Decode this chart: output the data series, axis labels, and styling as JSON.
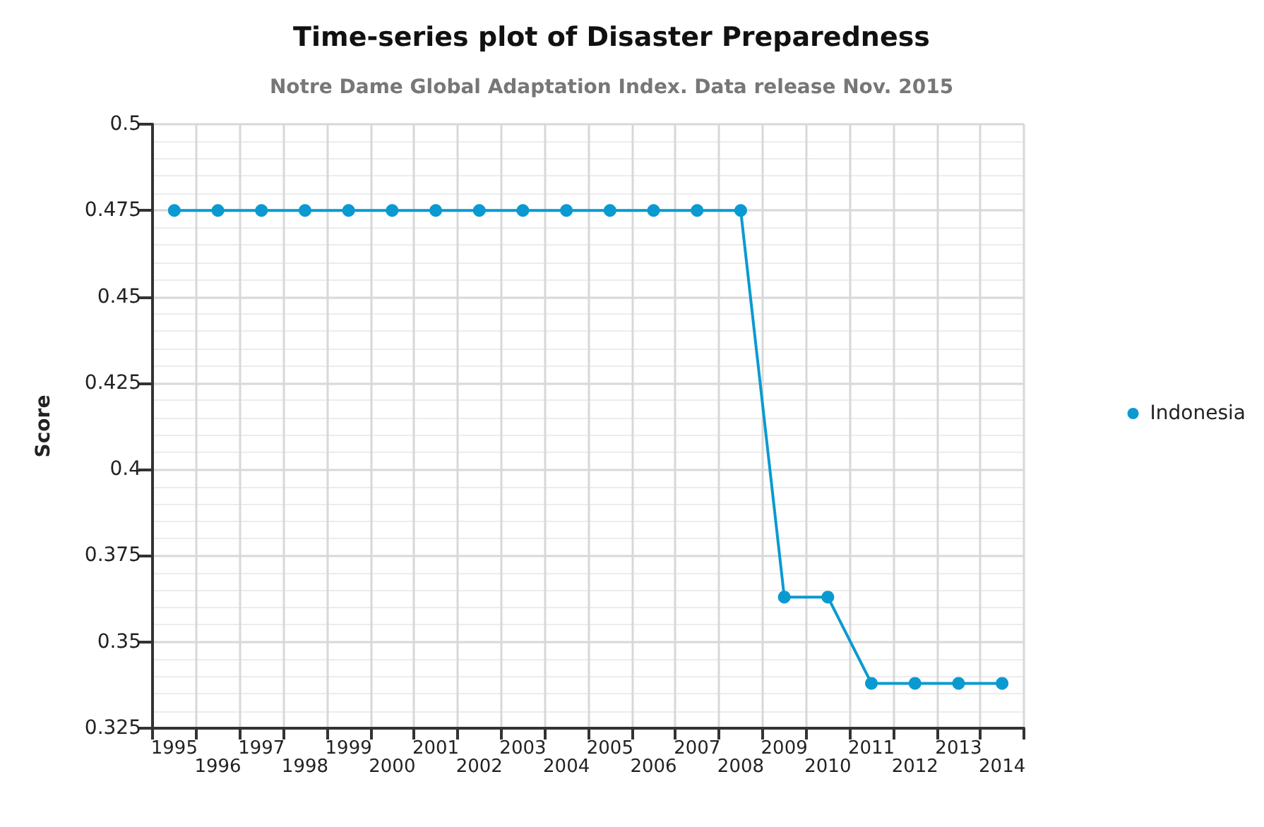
{
  "chart_data": {
    "type": "line",
    "title": "Time-series plot of Disaster Preparedness",
    "subtitle": "Notre Dame Global Adaptation Index. Data release Nov. 2015",
    "ylabel": "Score",
    "categories": [
      "1995",
      "1996",
      "1997",
      "1998",
      "1999",
      "2000",
      "2001",
      "2002",
      "2003",
      "2004",
      "2005",
      "2006",
      "2007",
      "2008",
      "2009",
      "2010",
      "2011",
      "2012",
      "2013",
      "2014"
    ],
    "series": [
      {
        "name": "Indonesia",
        "color": "#0a9ad1",
        "values": [
          0.475,
          0.475,
          0.475,
          0.475,
          0.475,
          0.475,
          0.475,
          0.475,
          0.475,
          0.475,
          0.475,
          0.475,
          0.475,
          0.475,
          0.363,
          0.363,
          0.338,
          0.338,
          0.338,
          0.338
        ]
      }
    ],
    "ylim": [
      0.325,
      0.5
    ],
    "yticks": [
      0.325,
      0.35,
      0.375,
      0.4,
      0.425,
      0.45,
      0.475,
      0.5
    ],
    "grid": true,
    "legend": "right",
    "marker": "circle",
    "line_style": "solid"
  }
}
